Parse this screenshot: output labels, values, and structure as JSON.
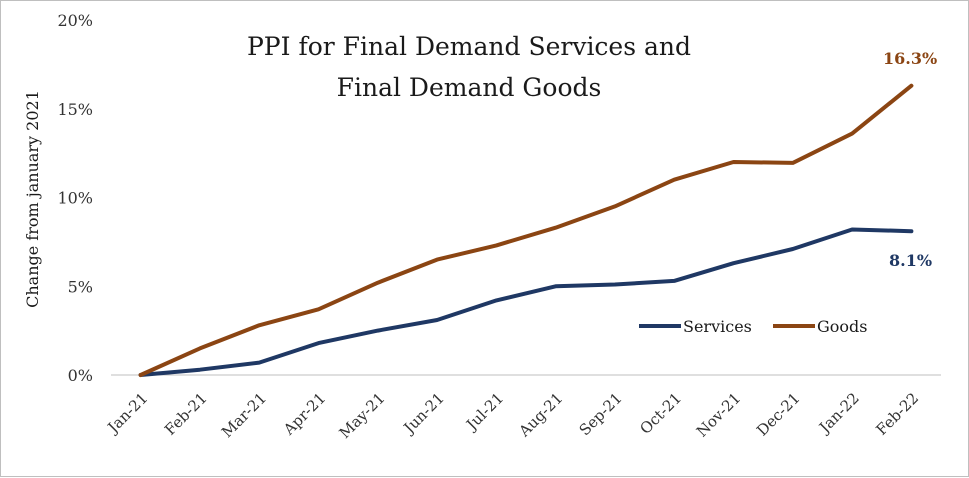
{
  "chart_data": {
    "type": "line",
    "title_lines": [
      "PPI for Final Demand Services and",
      "Final Demand Goods"
    ],
    "ylabel": "Change from january 2021",
    "xlabel": "",
    "categories": [
      "Jan-21",
      "Feb-21",
      "Mar-21",
      "Apr-21",
      "May-21",
      "Jun-21",
      "Jul-21",
      "Aug-21",
      "Sep-21",
      "Oct-21",
      "Nov-21",
      "Dec-21",
      "Jan-22",
      "Feb-22"
    ],
    "ylim": [
      0,
      20
    ],
    "yticks": [
      0,
      5,
      10,
      15,
      20
    ],
    "ytick_labels": [
      "0%",
      "5%",
      "10%",
      "15%",
      "20%"
    ],
    "grid": false,
    "legend_position": "bottom-right",
    "series": [
      {
        "name": "Services",
        "color": "#1f3864",
        "values": [
          0,
          0.3,
          0.7,
          1.8,
          2.5,
          3.1,
          4.2,
          5.0,
          5.1,
          5.3,
          6.3,
          7.1,
          8.2,
          8.1
        ],
        "end_label": "8.1%"
      },
      {
        "name": "Goods",
        "color": "#8b4513",
        "values": [
          0,
          1.5,
          2.8,
          3.7,
          5.2,
          6.5,
          7.3,
          8.3,
          9.5,
          11.0,
          12.0,
          11.95,
          13.6,
          16.3
        ],
        "end_label": "16.3%"
      }
    ]
  }
}
